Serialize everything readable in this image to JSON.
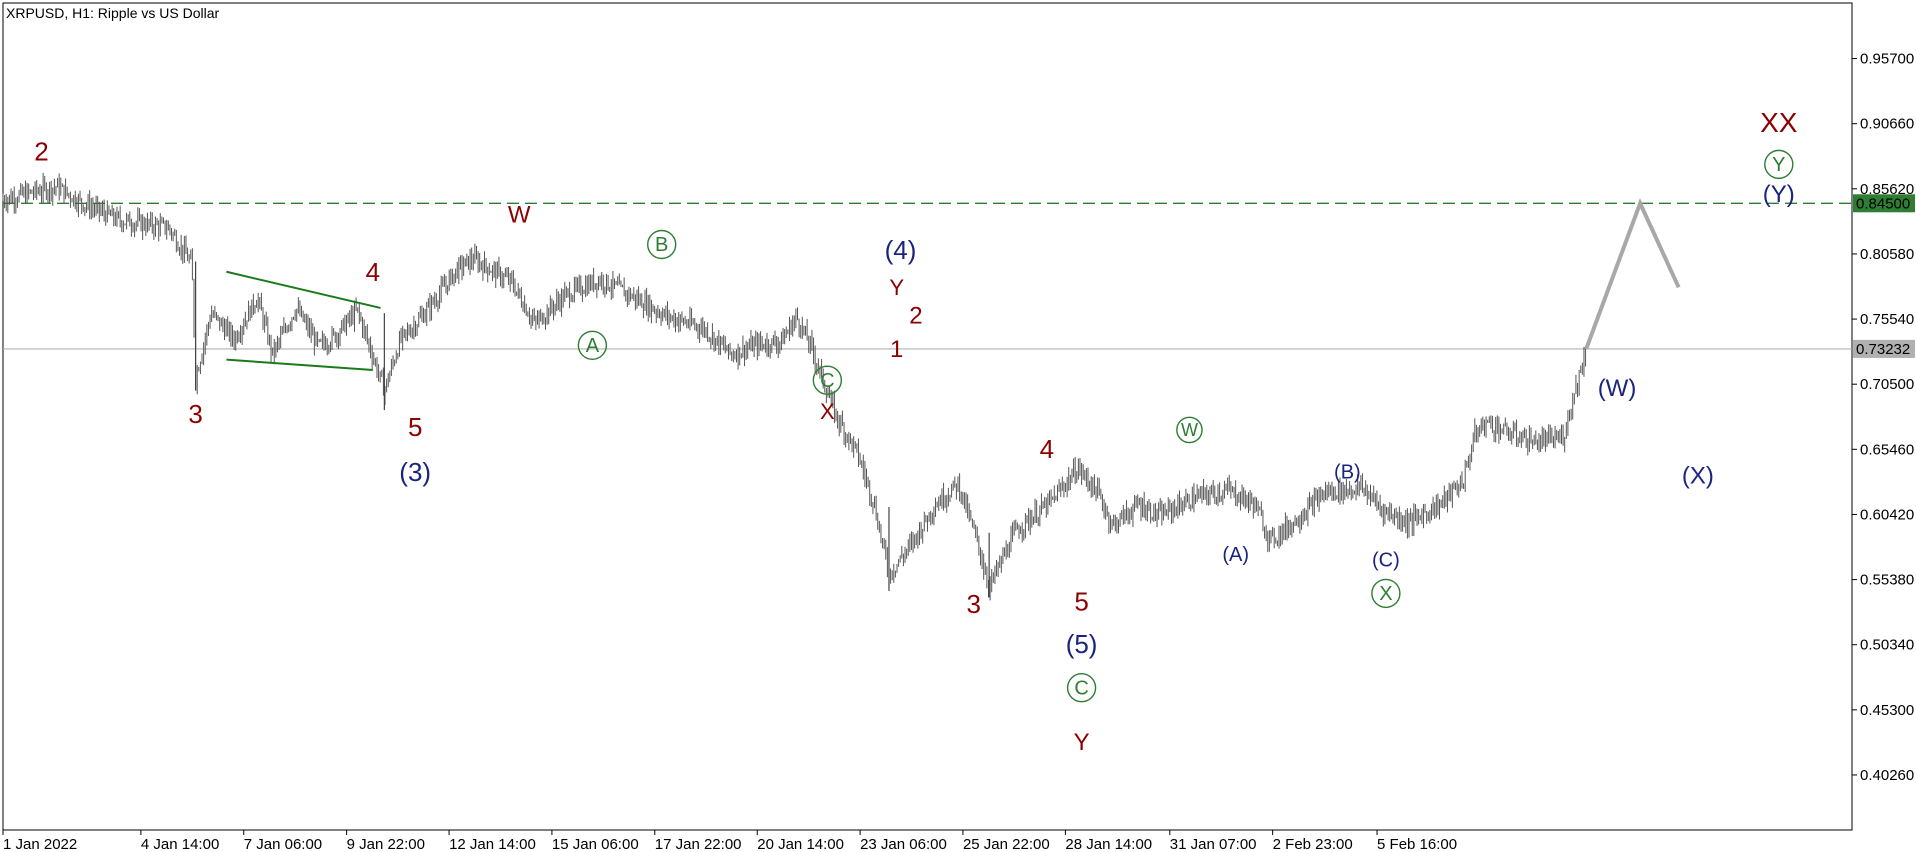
{
  "chart_data": {
    "type": "ohlc",
    "title": "XRPUSD, H1:  Ripple vs US Dollar",
    "symbol": "XRPUSD",
    "timeframe": "H1",
    "description": "Ripple vs US Dollar",
    "ylim": [
      0.36,
      1.0
    ],
    "y_ticks": [
      "0.95700",
      "0.90660",
      "0.85620",
      "0.80580",
      "0.75540",
      "0.70500",
      "0.65460",
      "0.60420",
      "0.55380",
      "0.50340",
      "0.45300",
      "0.40260"
    ],
    "x_ticks": [
      "1 Jan 2022",
      "4 Jan 14:00",
      "7 Jan 06:00",
      "9 Jan 22:00",
      "12 Jan 14:00",
      "15 Jan 06:00",
      "17 Jan 22:00",
      "20 Jan 14:00",
      "23 Jan 06:00",
      "25 Jan 22:00",
      "28 Jan 14:00",
      "31 Jan 07:00",
      "2 Feb 23:00",
      "5 Feb 16:00"
    ],
    "x_range": [
      "1 Jan 2022",
      "7 Feb 2022"
    ],
    "grid": false,
    "price_path": [
      {
        "t": 0.0,
        "p": 0.848
      },
      {
        "t": 1.4,
        "p": 0.858
      },
      {
        "t": 2.0,
        "p": 0.846
      },
      {
        "t": 3.0,
        "p": 0.832
      },
      {
        "t": 4.3,
        "p": 0.826
      },
      {
        "t": 4.9,
        "p": 0.798
      },
      {
        "t": 5.0,
        "p": 0.71
      },
      {
        "t": 5.4,
        "p": 0.76
      },
      {
        "t": 6.0,
        "p": 0.74
      },
      {
        "t": 6.6,
        "p": 0.772
      },
      {
        "t": 7.0,
        "p": 0.728
      },
      {
        "t": 7.6,
        "p": 0.764
      },
      {
        "t": 8.2,
        "p": 0.734
      },
      {
        "t": 8.6,
        "p": 0.742
      },
      {
        "t": 9.2,
        "p": 0.762
      },
      {
        "t": 9.9,
        "p": 0.7
      },
      {
        "t": 10.3,
        "p": 0.738
      },
      {
        "t": 11.0,
        "p": 0.762
      },
      {
        "t": 11.8,
        "p": 0.794
      },
      {
        "t": 12.2,
        "p": 0.802
      },
      {
        "t": 13.2,
        "p": 0.784
      },
      {
        "t": 13.8,
        "p": 0.752
      },
      {
        "t": 14.6,
        "p": 0.774
      },
      {
        "t": 15.5,
        "p": 0.786
      },
      {
        "t": 16.4,
        "p": 0.772
      },
      {
        "t": 17.2,
        "p": 0.758
      },
      {
        "t": 18.2,
        "p": 0.748
      },
      {
        "t": 18.9,
        "p": 0.728
      },
      {
        "t": 19.5,
        "p": 0.735
      },
      {
        "t": 20.2,
        "p": 0.738
      },
      {
        "t": 20.6,
        "p": 0.757
      },
      {
        "t": 21.0,
        "p": 0.732
      },
      {
        "t": 21.6,
        "p": 0.682
      },
      {
        "t": 22.2,
        "p": 0.65
      },
      {
        "t": 22.6,
        "p": 0.614
      },
      {
        "t": 23.0,
        "p": 0.558
      },
      {
        "t": 23.6,
        "p": 0.582
      },
      {
        "t": 24.2,
        "p": 0.612
      },
      {
        "t": 24.8,
        "p": 0.628
      },
      {
        "t": 25.3,
        "p": 0.582
      },
      {
        "t": 25.6,
        "p": 0.548
      },
      {
        "t": 26.3,
        "p": 0.592
      },
      {
        "t": 27.2,
        "p": 0.614
      },
      {
        "t": 27.9,
        "p": 0.64
      },
      {
        "t": 28.4,
        "p": 0.622
      },
      {
        "t": 28.8,
        "p": 0.596
      },
      {
        "t": 29.5,
        "p": 0.612
      },
      {
        "t": 30.0,
        "p": 0.603
      },
      {
        "t": 31.0,
        "p": 0.618
      },
      {
        "t": 31.8,
        "p": 0.623
      },
      {
        "t": 32.5,
        "p": 0.612
      },
      {
        "t": 32.9,
        "p": 0.584
      },
      {
        "t": 33.5,
        "p": 0.598
      },
      {
        "t": 34.3,
        "p": 0.621
      },
      {
        "t": 35.3,
        "p": 0.625
      },
      {
        "t": 35.8,
        "p": 0.608
      },
      {
        "t": 36.5,
        "p": 0.598
      },
      {
        "t": 37.3,
        "p": 0.612
      },
      {
        "t": 37.9,
        "p": 0.63
      },
      {
        "t": 38.2,
        "p": 0.665
      },
      {
        "t": 38.5,
        "p": 0.676
      },
      {
        "t": 39.0,
        "p": 0.668
      },
      {
        "t": 39.8,
        "p": 0.66
      },
      {
        "t": 40.5,
        "p": 0.664
      },
      {
        "t": 40.8,
        "p": 0.7
      },
      {
        "t": 41.1,
        "p": 0.731
      }
    ],
    "projection": [
      {
        "t": 41.1,
        "p": 0.7323
      },
      {
        "t": 42.5,
        "p": 0.845
      },
      {
        "t": 43.5,
        "p": 0.78
      }
    ],
    "horizontal_lines": [
      {
        "price": 0.845,
        "label": "0.84500",
        "color": "#2e7d32",
        "style": "dashed"
      },
      {
        "price": 0.7323,
        "label": "0.73232",
        "color": "#b0b0b0",
        "style": "solid"
      }
    ],
    "triangle_lines": [
      {
        "from": {
          "t": 5.8,
          "p": 0.792
        },
        "to": {
          "t": 9.8,
          "p": 0.764
        }
      },
      {
        "from": {
          "t": 5.8,
          "p": 0.724
        },
        "to": {
          "t": 9.6,
          "p": 0.716
        }
      }
    ],
    "wave_labels": [
      {
        "text": "2",
        "t": 1.0,
        "p": 0.878,
        "color": "#8b0000",
        "circled": false,
        "size": 26
      },
      {
        "text": "3",
        "t": 5.0,
        "p": 0.675,
        "color": "#8b0000",
        "circled": false,
        "size": 26
      },
      {
        "text": "4",
        "t": 9.6,
        "p": 0.785,
        "color": "#8b0000",
        "circled": false,
        "size": 26
      },
      {
        "text": "5",
        "t": 10.7,
        "p": 0.665,
        "color": "#8b0000",
        "circled": false,
        "size": 26
      },
      {
        "text": "(3)",
        "t": 10.7,
        "p": 0.63,
        "color": "#1a237e",
        "circled": false,
        "size": 26
      },
      {
        "text": "W",
        "t": 13.4,
        "p": 0.83,
        "color": "#8b0000",
        "circled": false,
        "size": 24
      },
      {
        "text": "A",
        "t": 15.3,
        "p": 0.73,
        "color": "#2e7d32",
        "circled": true,
        "size": 20
      },
      {
        "text": "B",
        "t": 17.1,
        "p": 0.808,
        "color": "#2e7d32",
        "circled": true,
        "size": 20
      },
      {
        "text": "C",
        "t": 21.4,
        "p": 0.703,
        "color": "#2e7d32",
        "circled": true,
        "size": 20
      },
      {
        "text": "X",
        "t": 21.4,
        "p": 0.678,
        "color": "#8b0000",
        "circled": false,
        "size": 22
      },
      {
        "text": "(4)",
        "t": 23.3,
        "p": 0.802,
        "color": "#1a237e",
        "circled": false,
        "size": 26
      },
      {
        "text": "Y",
        "t": 23.2,
        "p": 0.774,
        "color": "#8b0000",
        "circled": false,
        "size": 22
      },
      {
        "text": "2",
        "t": 23.7,
        "p": 0.752,
        "color": "#8b0000",
        "circled": false,
        "size": 24
      },
      {
        "text": "1",
        "t": 23.2,
        "p": 0.726,
        "color": "#8b0000",
        "circled": false,
        "size": 24
      },
      {
        "text": "3",
        "t": 25.2,
        "p": 0.528,
        "color": "#8b0000",
        "circled": false,
        "size": 26
      },
      {
        "text": "4",
        "t": 27.1,
        "p": 0.648,
        "color": "#8b0000",
        "circled": false,
        "size": 26
      },
      {
        "text": "5",
        "t": 28.0,
        "p": 0.53,
        "color": "#8b0000",
        "circled": false,
        "size": 26
      },
      {
        "text": "(5)",
        "t": 28.0,
        "p": 0.497,
        "color": "#1a237e",
        "circled": false,
        "size": 26
      },
      {
        "text": "C",
        "t": 28.0,
        "p": 0.465,
        "color": "#2e7d32",
        "circled": true,
        "size": 20
      },
      {
        "text": "Y",
        "t": 28.0,
        "p": 0.422,
        "color": "#8b0000",
        "circled": false,
        "size": 24
      },
      {
        "text": "W",
        "t": 30.8,
        "p": 0.665,
        "color": "#2e7d32",
        "circled": true,
        "size": 18
      },
      {
        "text": "(A)",
        "t": 32.0,
        "p": 0.568,
        "color": "#1a237e",
        "circled": false,
        "size": 20
      },
      {
        "text": "(B)",
        "t": 34.9,
        "p": 0.632,
        "color": "#1a237e",
        "circled": false,
        "size": 20
      },
      {
        "text": "(C)",
        "t": 35.9,
        "p": 0.564,
        "color": "#1a237e",
        "circled": false,
        "size": 20
      },
      {
        "text": "X",
        "t": 35.9,
        "p": 0.538,
        "color": "#2e7d32",
        "circled": true,
        "size": 20
      },
      {
        "text": "(W)",
        "t": 41.9,
        "p": 0.696,
        "color": "#1a237e",
        "circled": false,
        "size": 24
      },
      {
        "text": "(X)",
        "t": 44.0,
        "p": 0.628,
        "color": "#1a237e",
        "circled": false,
        "size": 24
      },
      {
        "text": "XX",
        "t": 46.1,
        "p": 0.9,
        "color": "#8b0000",
        "circled": false,
        "size": 28
      },
      {
        "text": "Y",
        "t": 46.1,
        "p": 0.87,
        "color": "#2e7d32",
        "circled": true,
        "size": 20
      },
      {
        "text": "(Y)",
        "t": 46.1,
        "p": 0.846,
        "color": "#1a237e",
        "circled": false,
        "size": 24
      }
    ]
  }
}
